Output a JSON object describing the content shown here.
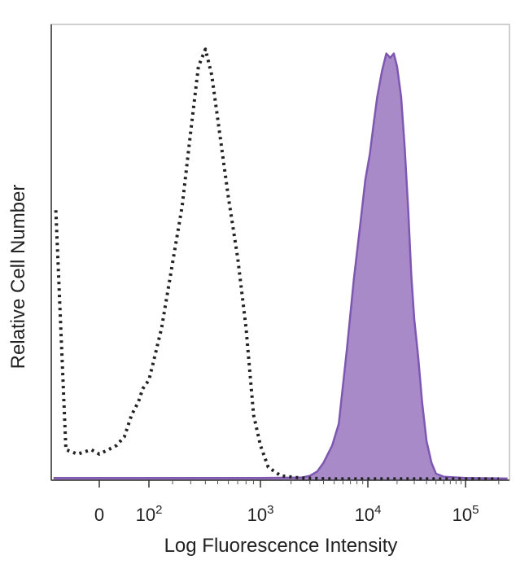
{
  "chart_data": {
    "type": "area",
    "title": "",
    "xlabel": "Log Fluorescence Intensity",
    "ylabel": "Relative Cell Number",
    "x_scale": "biexponential",
    "x_ticks": [
      {
        "value": 0,
        "base": "0",
        "exp": ""
      },
      {
        "value": 100,
        "base": "10",
        "exp": "2"
      },
      {
        "value": 1000,
        "base": "10",
        "exp": "3"
      },
      {
        "value": 10000,
        "base": "10",
        "exp": "4"
      },
      {
        "value": 100000,
        "base": "10",
        "exp": "5"
      }
    ],
    "xlim": [
      -160,
      250000
    ],
    "ylim": [
      0,
      100
    ],
    "grid": false,
    "legend": "none",
    "series": [
      {
        "style": "dotted",
        "color": "#222222",
        "fill": "none",
        "points": [
          [
            -140,
            62
          ],
          [
            -100,
            7
          ],
          [
            -60,
            6
          ],
          [
            -20,
            7
          ],
          [
            0,
            6
          ],
          [
            15,
            7
          ],
          [
            30,
            8
          ],
          [
            45,
            10
          ],
          [
            60,
            15
          ],
          [
            75,
            18
          ],
          [
            85,
            21
          ],
          [
            100,
            23
          ],
          [
            120,
            28
          ],
          [
            150,
            35
          ],
          [
            200,
            50
          ],
          [
            250,
            63
          ],
          [
            300,
            80
          ],
          [
            350,
            95
          ],
          [
            400,
            99
          ],
          [
            450,
            93
          ],
          [
            500,
            83
          ],
          [
            600,
            65
          ],
          [
            700,
            51
          ],
          [
            800,
            35
          ],
          [
            900,
            15
          ],
          [
            1000,
            8
          ],
          [
            1200,
            3
          ],
          [
            1600,
            1
          ],
          [
            2500,
            0.5
          ],
          [
            5000,
            0.3
          ],
          [
            50000,
            0.3
          ],
          [
            200000,
            0.3
          ]
        ]
      },
      {
        "style": "filled",
        "color": "#7e57b1",
        "fill": "#a88ac9",
        "points": [
          [
            -150,
            0.5
          ],
          [
            1000,
            0.5
          ],
          [
            2500,
            0.6
          ],
          [
            3000,
            1
          ],
          [
            3500,
            2
          ],
          [
            4000,
            4
          ],
          [
            4800,
            8
          ],
          [
            5500,
            13
          ],
          [
            6500,
            30
          ],
          [
            7500,
            46
          ],
          [
            8500,
            58
          ],
          [
            9500,
            69
          ],
          [
            10500,
            75
          ],
          [
            11500,
            82
          ],
          [
            12500,
            88
          ],
          [
            14000,
            94
          ],
          [
            15500,
            98
          ],
          [
            17000,
            97
          ],
          [
            18500,
            98
          ],
          [
            20000,
            95
          ],
          [
            22000,
            88
          ],
          [
            24000,
            76
          ],
          [
            26000,
            62
          ],
          [
            28000,
            47
          ],
          [
            30000,
            37
          ],
          [
            33000,
            28
          ],
          [
            36000,
            18
          ],
          [
            40000,
            9
          ],
          [
            45000,
            4
          ],
          [
            50000,
            1.5
          ],
          [
            60000,
            0.8
          ],
          [
            100000,
            0.5
          ],
          [
            240000,
            0.4
          ]
        ]
      }
    ]
  }
}
